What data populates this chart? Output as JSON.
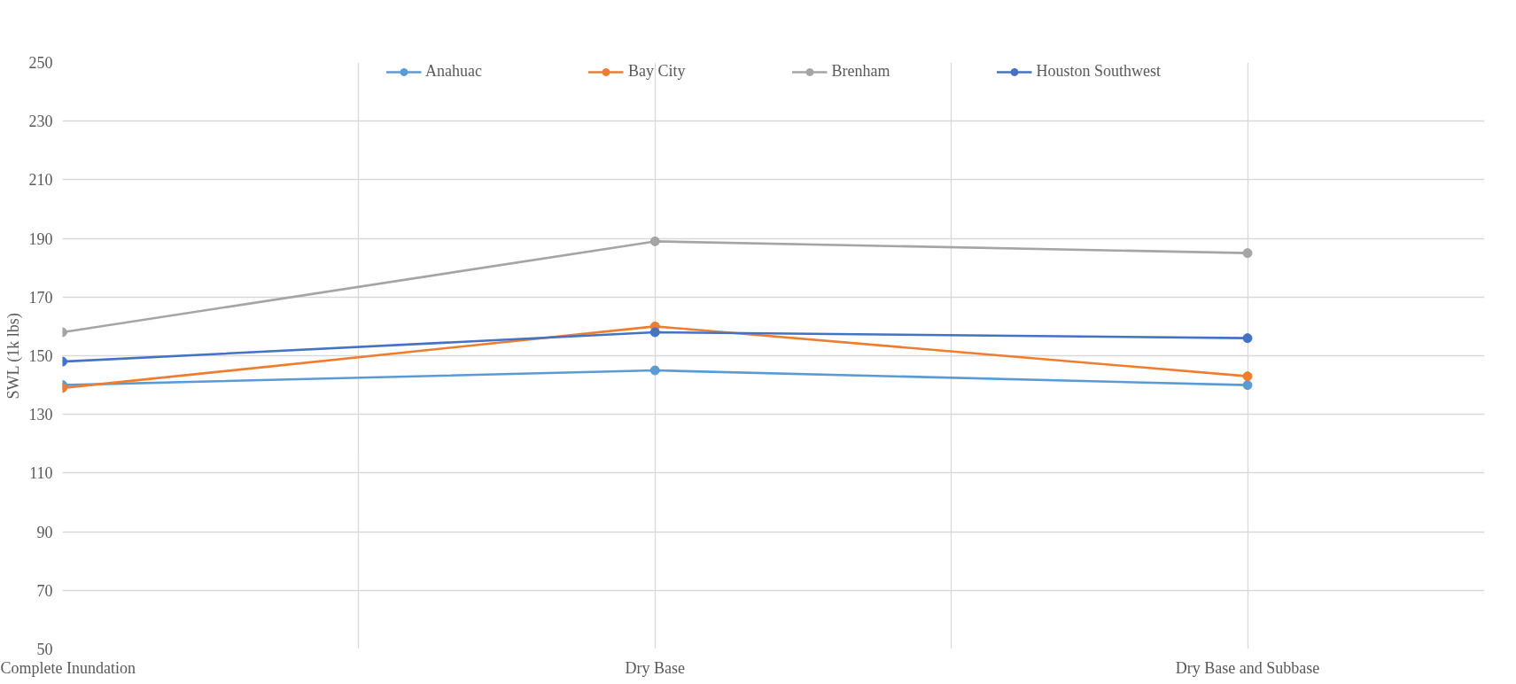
{
  "chart_data": {
    "type": "line",
    "ylabel": "SWL (1k lbs)",
    "categories": [
      "Complete Inundation",
      "Dry Base",
      "Dry Base and Subbase"
    ],
    "series": [
      {
        "name": "Anahuac",
        "color": "#5b9bd5",
        "values": [
          140,
          145,
          140
        ]
      },
      {
        "name": "Bay City",
        "color": "#ed7d31",
        "values": [
          139,
          160,
          143
        ]
      },
      {
        "name": "Brenham",
        "color": "#a5a5a5",
        "values": [
          158,
          189,
          185
        ]
      },
      {
        "name": "Houston Southwest",
        "color": "#4472c4",
        "values": [
          148,
          158,
          156
        ]
      }
    ],
    "ylim": [
      50,
      250
    ],
    "yticks": [
      50,
      70,
      90,
      110,
      130,
      150,
      170,
      190,
      210,
      230,
      250
    ],
    "grid": true,
    "legend": "top",
    "marker": "circle",
    "line_style": "solid"
  }
}
